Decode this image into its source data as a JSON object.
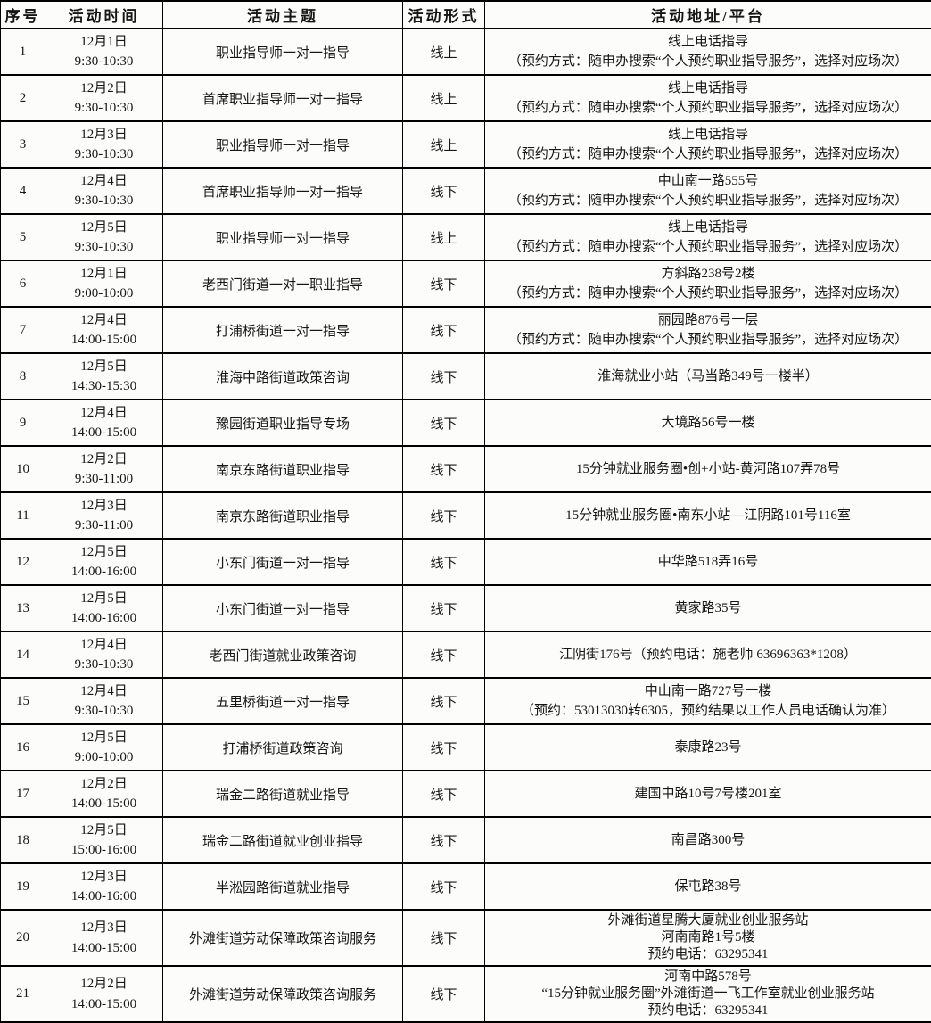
{
  "page": {
    "background_color": "#fcfcfa",
    "border_color": "#000000",
    "text_color": "#161616"
  },
  "table": {
    "headers": [
      "序号",
      "活动时间",
      "活动主题",
      "活动形式",
      "活动地址/平台"
    ],
    "rows": [
      {
        "no": "1",
        "date": "12月1日",
        "time": "9:30-10:30",
        "topic": "职业指导师一对一指导",
        "format": "线上",
        "address": [
          "线上电话指导",
          "（预约方式：随申办搜索“个人预约职业指导服务”，选择对应场次）"
        ]
      },
      {
        "no": "2",
        "date": "12月2日",
        "time": "9:30-10:30",
        "topic": "首席职业指导师一对一指导",
        "format": "线上",
        "address": [
          "线上电话指导",
          "（预约方式：随申办搜索“个人预约职业指导服务”，选择对应场次）"
        ]
      },
      {
        "no": "3",
        "date": "12月3日",
        "time": "9:30-10:30",
        "topic": "职业指导师一对一指导",
        "format": "线上",
        "address": [
          "线上电话指导",
          "（预约方式：随申办搜索“个人预约职业指导服务”，选择对应场次）"
        ]
      },
      {
        "no": "4",
        "date": "12月4日",
        "time": "9:30-10:30",
        "topic": "首席职业指导师一对一指导",
        "format": "线下",
        "address": [
          "中山南一路555号",
          "（预约方式：随申办搜索“个人预约职业指导服务”，选择对应场次）"
        ]
      },
      {
        "no": "5",
        "date": "12月5日",
        "time": "9:30-10:30",
        "topic": "职业指导师一对一指导",
        "format": "线上",
        "address": [
          "线上电话指导",
          "（预约方式：随申办搜索“个人预约职业指导服务”，选择对应场次）"
        ]
      },
      {
        "no": "6",
        "date": "12月1日",
        "time": "9:00-10:00",
        "topic": "老西门街道一对一职业指导",
        "format": "线下",
        "address": [
          "方斜路238号2楼",
          "（预约方式：随申办搜索“个人预约职业指导服务”，选择对应场次）"
        ]
      },
      {
        "no": "7",
        "date": "12月4日",
        "time": "14:00-15:00",
        "topic": "打浦桥街道一对一指导",
        "format": "线下",
        "address": [
          "丽园路876号一层",
          "（预约方式：随申办搜索“个人预约职业指导服务”，选择对应场次）"
        ]
      },
      {
        "no": "8",
        "date": "12月5日",
        "time": "14:30-15:30",
        "topic": "淮海中路街道政策咨询",
        "format": "线下",
        "address": [
          "淮海就业小站（马当路349号一楼半）"
        ]
      },
      {
        "no": "9",
        "date": "12月4日",
        "time": "14:00-15:00",
        "topic": "豫园街道职业指导专场",
        "format": "线下",
        "address": [
          "大境路56号一楼"
        ]
      },
      {
        "no": "10",
        "date": "12月2日",
        "time": "9:30-11:00",
        "topic": "南京东路街道职业指导",
        "format": "线下",
        "address": [
          "15分钟就业服务圈•创+小站-黄河路107弄78号"
        ]
      },
      {
        "no": "11",
        "date": "12月3日",
        "time": "9:30-11:00",
        "topic": "南京东路街道职业指导",
        "format": "线下",
        "address": [
          "15分钟就业服务圈•南东小站—江阴路101号116室"
        ]
      },
      {
        "no": "12",
        "date": "12月5日",
        "time": "14:00-16:00",
        "topic": "小东门街道一对一指导",
        "format": "线下",
        "address": [
          "中华路518弄16号"
        ]
      },
      {
        "no": "13",
        "date": "12月5日",
        "time": "14:00-16:00",
        "topic": "小东门街道一对一指导",
        "format": "线下",
        "address": [
          "黄家路35号"
        ]
      },
      {
        "no": "14",
        "date": "12月4日",
        "time": "9:30-10:30",
        "topic": "老西门街道就业政策咨询",
        "format": "线下",
        "address": [
          "江阴街176号（预约电话：施老师 63696363*1208）"
        ]
      },
      {
        "no": "15",
        "date": "12月4日",
        "time": "9:30-10:30",
        "topic": "五里桥街道一对一指导",
        "format": "线下",
        "address": [
          "中山南一路727号一楼",
          "（预约：53013030转6305，预约结果以工作人员电话确认为准）"
        ]
      },
      {
        "no": "16",
        "date": "12月5日",
        "time": "9:00-10:00",
        "topic": "打浦桥街道政策咨询",
        "format": "线下",
        "address": [
          "泰康路23号"
        ]
      },
      {
        "no": "17",
        "date": "12月2日",
        "time": "14:00-15:00",
        "topic": "瑞金二路街道就业指导",
        "format": "线下",
        "address": [
          "建国中路10号7号楼201室"
        ]
      },
      {
        "no": "18",
        "date": "12月5日",
        "time": "15:00-16:00",
        "topic": "瑞金二路街道就业创业指导",
        "format": "线下",
        "address": [
          "南昌路300号"
        ]
      },
      {
        "no": "19",
        "date": "12月3日",
        "time": "14:00-16:00",
        "topic": "半淞园路街道就业指导",
        "format": "线下",
        "address": [
          "保屯路38号"
        ]
      },
      {
        "no": "20",
        "date": "12月3日",
        "time": "14:00-15:00",
        "topic": "外滩街道劳动保障政策咨询服务",
        "format": "线下",
        "address": [
          "外滩街道星腾大厦就业创业服务站",
          "河南南路1号5楼",
          "预约电话：63295341"
        ]
      },
      {
        "no": "21",
        "date": "12月2日",
        "time": "14:00-15:00",
        "topic": "外滩街道劳动保障政策咨询服务",
        "format": "线下",
        "address": [
          "河南中路578号",
          "“15分钟就业服务圈”外滩街道一飞工作室就业创业服务站",
          "预约电话：63295341"
        ]
      }
    ]
  }
}
